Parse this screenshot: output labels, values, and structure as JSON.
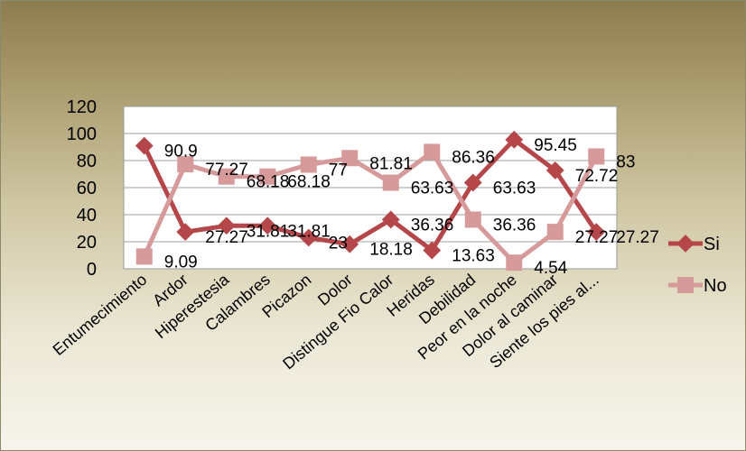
{
  "chart_data": {
    "type": "line",
    "title": "",
    "xlabel": "",
    "ylabel": "",
    "ylim": [
      0,
      120
    ],
    "yticks": [
      0,
      20,
      40,
      60,
      80,
      100,
      120
    ],
    "grid": true,
    "legend_position": "right",
    "categories": [
      "Entumecimiento",
      "Ardor",
      "Hiperestesia",
      "Calambres",
      "Picazon",
      "Dolor",
      "Distingue Fio Calor",
      "Heridas",
      "Debilidad",
      "Peor en la noche",
      "Dolor al caminar",
      "Siente los pies al..."
    ],
    "series": [
      {
        "name": "Si",
        "color": "#b5474a",
        "marker": "diamond",
        "values": [
          90.9,
          27.27,
          31.81,
          31.81,
          23,
          18.18,
          36.36,
          13.63,
          63.63,
          95.45,
          72.72,
          27.27
        ],
        "labels": [
          "90.9",
          "27.27",
          "31.81",
          "31.81",
          "23",
          "18.18",
          "36.36",
          "13.63",
          "63.63",
          "95.45",
          "72.72",
          "27.27"
        ]
      },
      {
        "name": "No",
        "color": "#d69a9a",
        "marker": "square",
        "values": [
          9.09,
          77.27,
          68.18,
          68.18,
          77,
          81.81,
          63.63,
          86.36,
          36.36,
          4.54,
          27.27,
          83
        ],
        "labels": [
          "9.09",
          "77.27",
          "68.18",
          "68.18",
          "77",
          "81.81",
          "63.63",
          "86.36",
          "36.36",
          "4.54",
          "27.27",
          "83"
        ]
      }
    ]
  }
}
